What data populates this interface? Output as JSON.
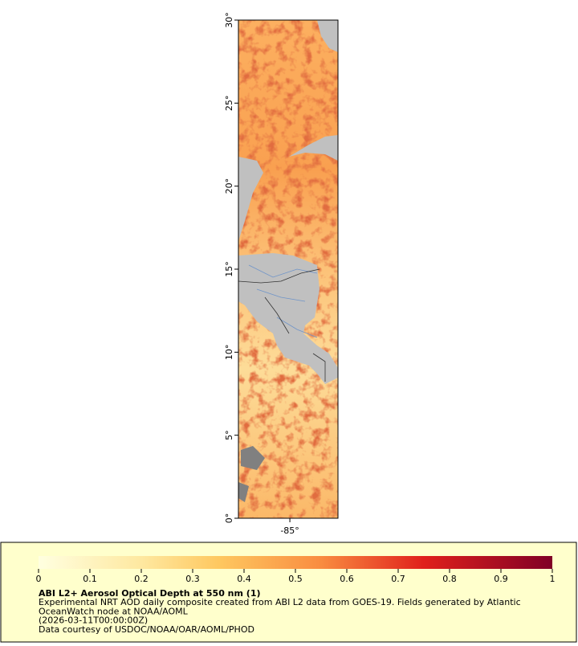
{
  "map": {
    "ylim": [
      0,
      30
    ],
    "yticks": [
      {
        "value": 0,
        "label": "0°"
      },
      {
        "value": 5,
        "label": "5°"
      },
      {
        "value": 10,
        "label": "10°"
      },
      {
        "value": 15,
        "label": "15°"
      },
      {
        "value": 20,
        "label": "20°"
      },
      {
        "value": 25,
        "label": "25°"
      },
      {
        "value": 30,
        "label": "30°"
      }
    ],
    "xlim": [
      -88.1,
      -82.1
    ],
    "xticks": [
      {
        "value": -85,
        "label": "-85°"
      }
    ]
  },
  "legend": {
    "colorbar": {
      "lim": [
        0,
        1
      ],
      "ticks": [
        0,
        0.1,
        0.2,
        0.3,
        0.4,
        0.5,
        0.6,
        0.7,
        0.8,
        0.9,
        1
      ]
    },
    "title": "ABI L2+ Aerosol Optical Depth at 550 nm (1)",
    "lines": [
      "Experimental NRT AOD daily composite created from ABI L2 data from GOES-19. Fields generated by Atlantic",
      "OceanWatch node at NOAA/AOML",
      "(2026-03-11T00:00:00Z)",
      "Data courtesy of USDOC/NOAA/OAR/AOML/PHOD"
    ]
  }
}
